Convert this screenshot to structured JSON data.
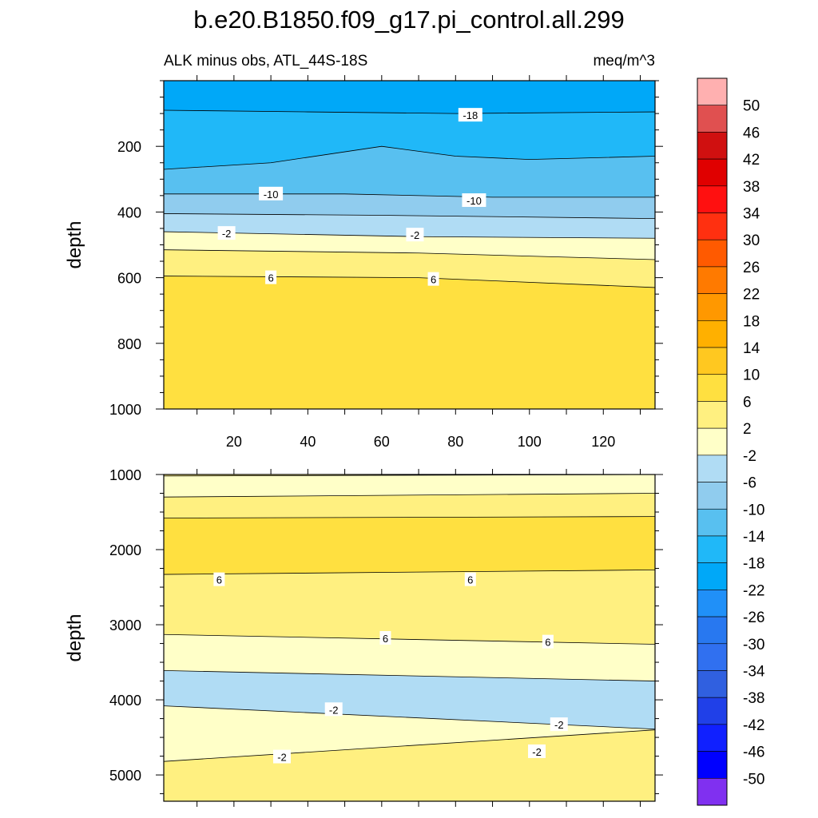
{
  "chart_data": {
    "type": "contour",
    "title": "b.e20.B1850.f09_g17.pi_control.all.299",
    "subtitle_left": "ALK minus obs, ATL_44S-18S",
    "subtitle_right": "meq/m^3",
    "colorbar": {
      "levels": [
        50,
        46,
        42,
        38,
        34,
        30,
        26,
        22,
        18,
        14,
        10,
        6,
        2,
        -2,
        -6,
        -10,
        -14,
        -18,
        -22,
        -26,
        -30,
        -34,
        -38,
        -42,
        -46,
        -50
      ],
      "colors": [
        "#ffb0b0",
        "#e05050",
        "#d01010",
        "#e00000",
        "#ff1010",
        "#ff3010",
        "#ff5a00",
        "#ff7a00",
        "#ff9800",
        "#ffb000",
        "#ffc820",
        "#ffe040",
        "#fff080",
        "#ffffc8",
        "#b0dcf4",
        "#90ccee",
        "#58c0f0",
        "#20b8f8",
        "#00a8f8",
        "#2090f8",
        "#2878f0",
        "#3070f0",
        "#3060e0",
        "#2040e8",
        "#1020ff",
        "#0000ff",
        "#8030f0"
      ]
    },
    "panels": [
      {
        "name": "upper",
        "ylabel": "depth",
        "xlim": [
          1,
          134
        ],
        "ylim": [
          1000,
          0
        ],
        "xticks": [
          20,
          40,
          60,
          80,
          100,
          120
        ],
        "yticks": [
          200,
          400,
          600,
          800,
          1000
        ],
        "bands": [
          {
            "value": -18,
            "color": "#00a8f8",
            "boundary": [
              [
                1,
                90
              ],
              [
                40,
                95
              ],
              [
                80,
                100
              ],
              [
                134,
                95
              ]
            ]
          },
          {
            "value": -14,
            "color": "#20b8f8",
            "boundary": [
              [
                1,
                270
              ],
              [
                30,
                250
              ],
              [
                60,
                200
              ],
              [
                80,
                230
              ],
              [
                100,
                240
              ],
              [
                134,
                230
              ]
            ]
          },
          {
            "value": -10,
            "color": "#58c0f0",
            "boundary": [
              [
                1,
                345
              ],
              [
                50,
                345
              ],
              [
                90,
                355
              ],
              [
                134,
                355
              ]
            ]
          },
          {
            "value": -6,
            "color": "#90ccee",
            "boundary": [
              [
                1,
                405
              ],
              [
                60,
                410
              ],
              [
                134,
                420
              ]
            ]
          },
          {
            "value": -2,
            "color": "#b0dcf4",
            "boundary": [
              [
                1,
                460
              ],
              [
                70,
                475
              ],
              [
                134,
                480
              ]
            ]
          },
          {
            "value": 2,
            "color": "#ffffc8",
            "boundary": [
              [
                1,
                515
              ],
              [
                70,
                525
              ],
              [
                134,
                545
              ]
            ]
          },
          {
            "value": 6,
            "color": "#fff080",
            "boundary": [
              [
                1,
                595
              ],
              [
                70,
                600
              ],
              [
                134,
                630
              ]
            ]
          },
          {
            "value": 10,
            "color": "#ffe040",
            "boundary": [
              [
                1,
                1000
              ],
              [
                134,
                1000
              ]
            ]
          }
        ],
        "labels": [
          {
            "text": "-18",
            "x": 84,
            "y": 105
          },
          {
            "text": "-10",
            "x": 30,
            "y": 345
          },
          {
            "text": "-10",
            "x": 85,
            "y": 365
          },
          {
            "text": "-2",
            "x": 18,
            "y": 465
          },
          {
            "text": "-2",
            "x": 69,
            "y": 470
          },
          {
            "text": "6",
            "x": 30,
            "y": 600
          },
          {
            "text": "6",
            "x": 74,
            "y": 605
          }
        ]
      },
      {
        "name": "lower",
        "ylabel": "depth",
        "xlim": [
          1,
          134
        ],
        "ylim": [
          5350,
          1000
        ],
        "yticks": [
          1000,
          2000,
          3000,
          4000,
          5000
        ],
        "bands": [
          {
            "value": 6,
            "color": "#fff080",
            "boundary": [
              [
                1,
                1020
              ],
              [
                134,
                1000
              ]
            ]
          },
          {
            "value": 2,
            "color": "#ffffc8",
            "boundary": [
              [
                1,
                1300
              ],
              [
                134,
                1250
              ]
            ]
          },
          {
            "value": 6,
            "color": "#fff080",
            "boundary": [
              [
                1,
                1580
              ],
              [
                134,
                1560
              ]
            ]
          },
          {
            "value": 10,
            "color": "#ffe040",
            "boundary": [
              [
                1,
                2330
              ],
              [
                134,
                2270
              ]
            ]
          },
          {
            "value": 6,
            "color": "#fff080",
            "boundary": [
              [
                1,
                3130
              ],
              [
                134,
                3260
              ]
            ]
          },
          {
            "value": 2,
            "color": "#ffffc8",
            "boundary": [
              [
                1,
                3610
              ],
              [
                134,
                3750
              ]
            ]
          },
          {
            "value": -2,
            "color": "#b0dcf4",
            "boundary": [
              [
                1,
                4080
              ],
              [
                134,
                4390
              ]
            ]
          },
          {
            "value": 2,
            "color": "#ffffc8",
            "boundary": [
              [
                1,
                4820
              ],
              [
                134,
                4400
              ]
            ]
          },
          {
            "value": 6,
            "color": "#fff080",
            "boundary": [
              [
                1,
                5300
              ],
              [
                134,
                5160
              ]
            ]
          }
        ],
        "labels": [
          {
            "text": "6",
            "x": 16,
            "y": 2400
          },
          {
            "text": "6",
            "x": 84,
            "y": 2400
          },
          {
            "text": "6",
            "x": 61,
            "y": 3180
          },
          {
            "text": "6",
            "x": 105,
            "y": 3230
          },
          {
            "text": "-2",
            "x": 47,
            "y": 4130
          },
          {
            "text": "-2",
            "x": 108,
            "y": 4330
          },
          {
            "text": "-2",
            "x": 33,
            "y": 4760
          },
          {
            "text": "-2",
            "x": 102,
            "y": 4690
          }
        ]
      }
    ]
  }
}
